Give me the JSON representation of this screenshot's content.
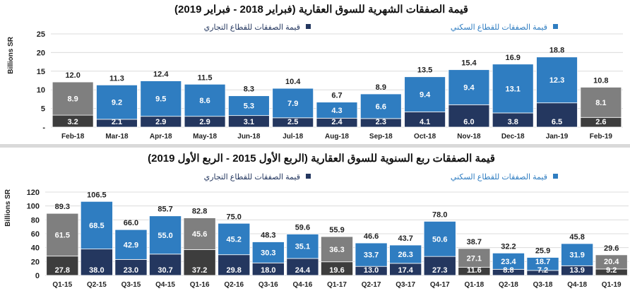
{
  "colors": {
    "residential": "#2f7dc1",
    "commercial": "#24375f",
    "highlight_residential": "#7f7f7f",
    "highlight_commercial": "#3d3d3d",
    "legend_residential_text": "#2f7dc1",
    "legend_commercial_text": "#24375f"
  },
  "chart_data": [
    {
      "type": "bar",
      "stacked": true,
      "title": "قيمة الصفقات الشهرية للسوق العقارية (فبراير 2018 - فبراير 2019)",
      "ylabel": "Billions SR",
      "ylim": [
        0,
        25
      ],
      "yticks": [
        "-",
        "5",
        "10",
        "15",
        "20",
        "25"
      ],
      "grid": true,
      "legend": "top",
      "categories": [
        "Feb-18",
        "Mar-18",
        "Apr-18",
        "May-18",
        "Jun-18",
        "Jul-18",
        "Aug-18",
        "Sep-18",
        "Oct-18",
        "Nov-18",
        "Dec-18",
        "Jan-19",
        "Feb-19"
      ],
      "highlighted": [
        "Feb-18",
        "Feb-19"
      ],
      "series": [
        {
          "name": "قيمة الصفقات للقطاع التجاري",
          "values": [
            3.2,
            2.1,
            2.9,
            2.9,
            3.1,
            2.5,
            2.4,
            2.3,
            4.1,
            6.0,
            3.8,
            6.5,
            2.6
          ]
        },
        {
          "name": "قيمة الصفقات للقطاع السكني",
          "values": [
            8.9,
            9.2,
            9.5,
            8.6,
            5.3,
            7.9,
            4.3,
            6.6,
            9.4,
            9.4,
            13.1,
            12.3,
            8.1
          ]
        }
      ],
      "totals": [
        12.0,
        11.3,
        12.4,
        11.5,
        8.3,
        10.4,
        6.7,
        8.9,
        13.5,
        15.4,
        16.9,
        18.8,
        10.8
      ]
    },
    {
      "type": "bar",
      "stacked": true,
      "title": "قيمة الصفقات ربع السنوية للسوق العقارية (الربع الأول 2015 - الربع الأول 2019)",
      "ylabel": "Billions SR",
      "ylim": [
        0,
        120
      ],
      "yticks": [
        "0",
        "20",
        "40",
        "60",
        "80",
        "100",
        "120"
      ],
      "grid": true,
      "legend": "top",
      "categories": [
        "Q1-15",
        "Q2-15",
        "Q3-15",
        "Q4-15",
        "Q1-16",
        "Q2-16",
        "Q3-16",
        "Q4-16",
        "Q1-17",
        "Q2-17",
        "Q3-17",
        "Q4-17",
        "Q1-18",
        "Q2-18",
        "Q3-18",
        "Q4-18",
        "Q1-19"
      ],
      "highlighted": [
        "Q1-15",
        "Q1-16",
        "Q1-17",
        "Q1-18",
        "Q1-19"
      ],
      "series": [
        {
          "name": "قيمة الصفقات للقطاع التجاري",
          "values": [
            27.8,
            38.0,
            23.0,
            30.7,
            37.2,
            29.8,
            18.0,
            24.4,
            19.6,
            13.0,
            17.4,
            27.3,
            11.6,
            8.8,
            7.2,
            13.9,
            9.2
          ]
        },
        {
          "name": "قيمة الصفقات للقطاع السكني",
          "values": [
            61.5,
            68.5,
            42.9,
            55.0,
            45.6,
            45.2,
            30.3,
            35.1,
            36.3,
            33.7,
            26.3,
            50.6,
            27.1,
            23.4,
            18.7,
            31.9,
            20.4
          ]
        }
      ],
      "totals": [
        89.3,
        106.5,
        66.0,
        85.7,
        82.8,
        75.0,
        48.3,
        59.6,
        55.9,
        46.6,
        43.7,
        78.0,
        38.7,
        32.2,
        25.9,
        45.8,
        29.6
      ]
    }
  ]
}
